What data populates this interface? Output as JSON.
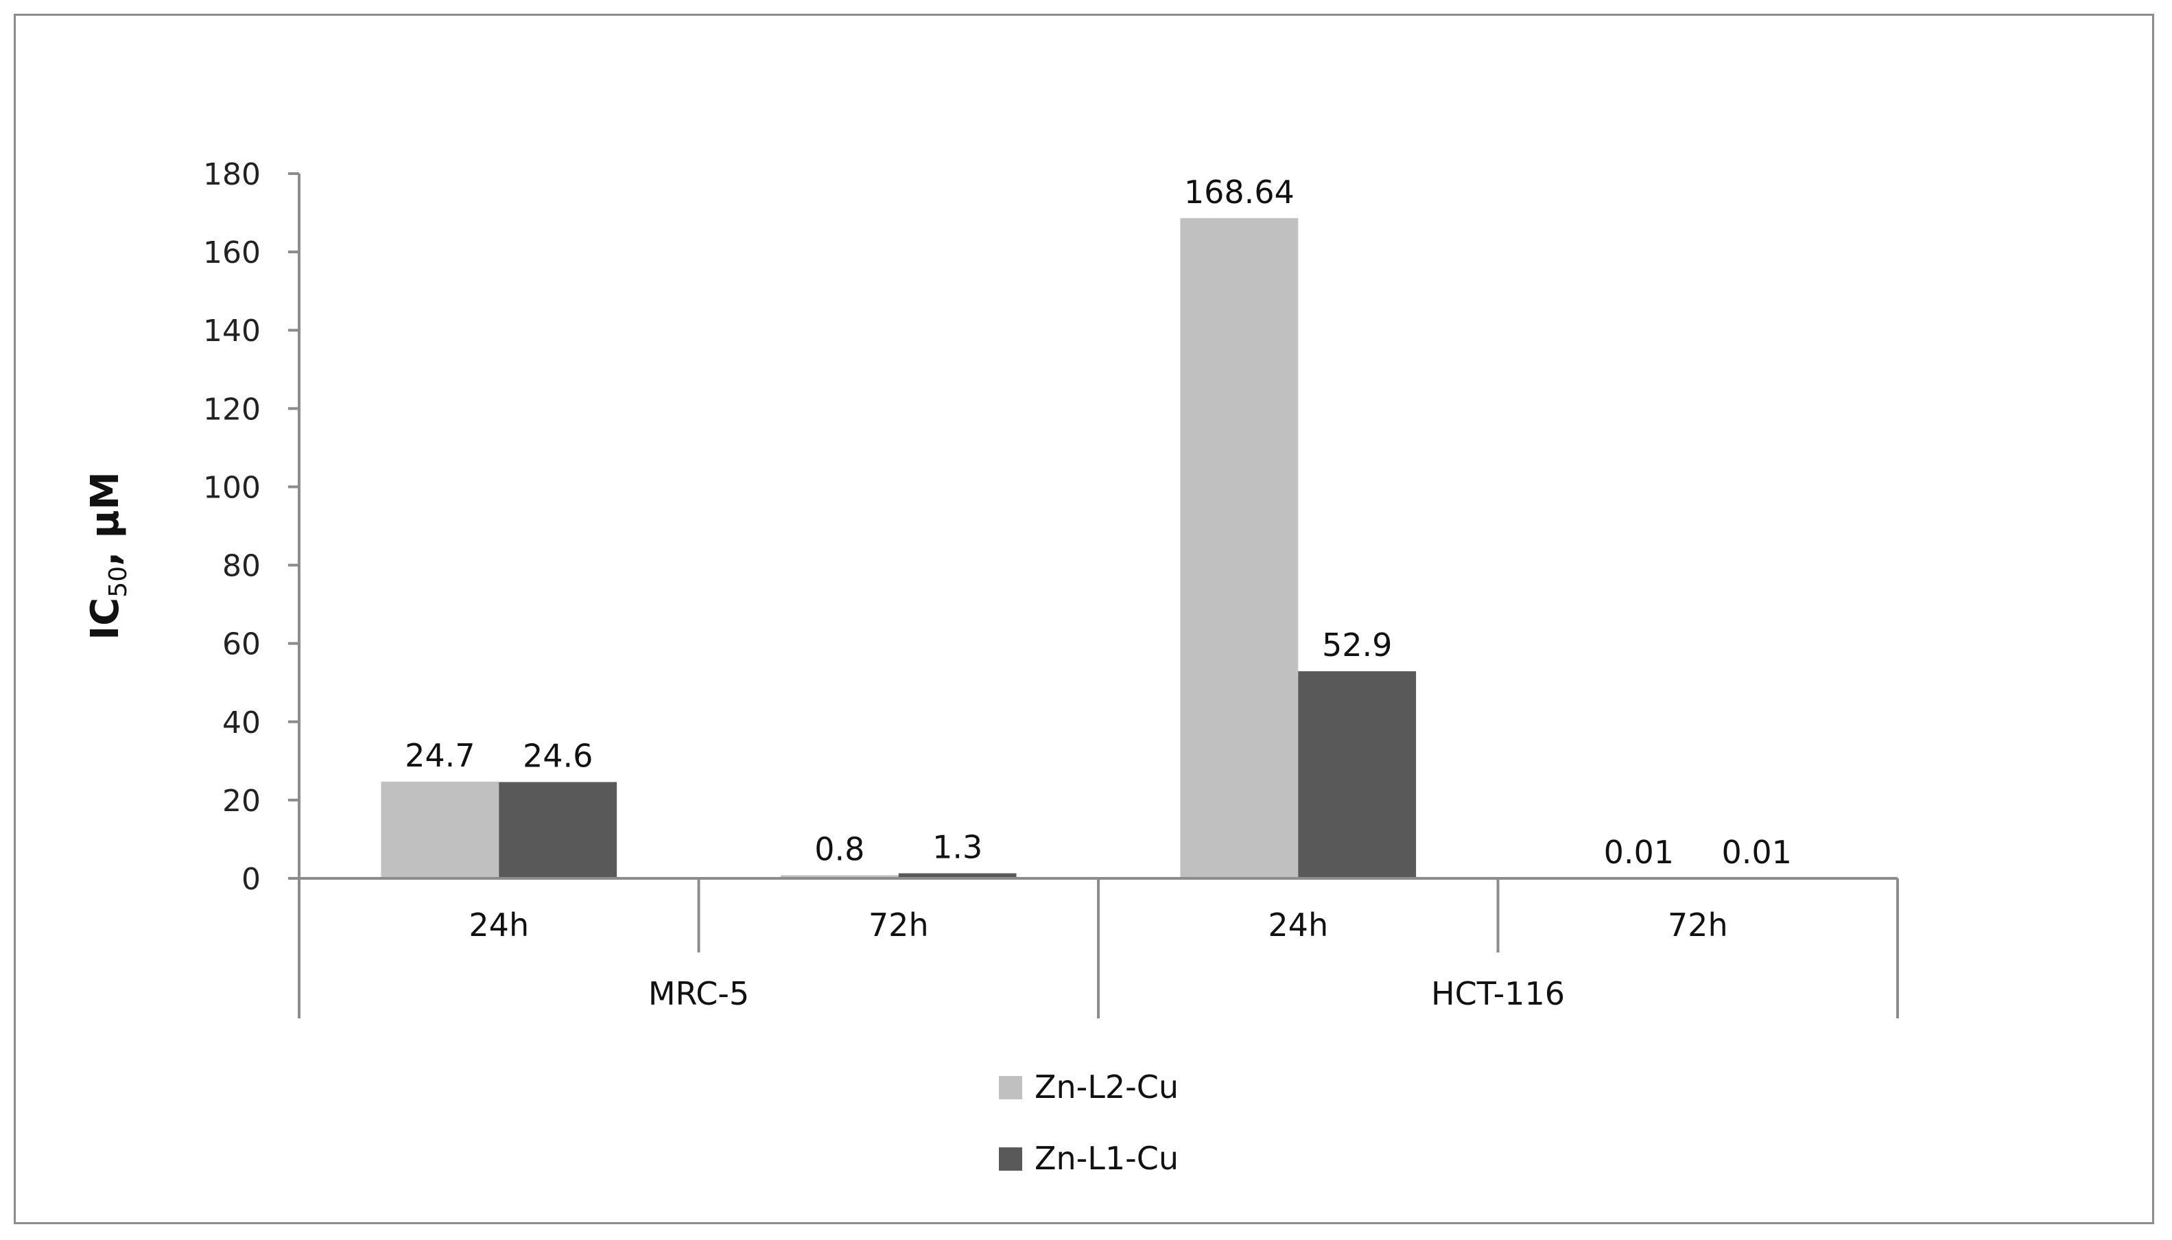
{
  "chart_data": {
    "type": "bar",
    "ylabel": "IC 50, μM",
    "ylabel_main": "IC",
    "ylabel_sub": "50",
    "ylabel_unit": ", μM",
    "ylim": [
      0,
      180
    ],
    "yticks": [
      0,
      20,
      40,
      60,
      80,
      100,
      120,
      140,
      160,
      180
    ],
    "groups": [
      "MRC-5",
      "HCT-116"
    ],
    "categories": [
      "24h",
      "72h",
      "24h",
      "72h"
    ],
    "category_group": [
      0,
      0,
      1,
      1
    ],
    "series": [
      {
        "name": "Zn-L2-Cu",
        "color": "#c0c0c0",
        "values": [
          24.7,
          0.8,
          168.64,
          0.01
        ],
        "labels": [
          "24.7",
          "0.8",
          "168.64",
          "0.01"
        ]
      },
      {
        "name": "Zn-L1-Cu",
        "color": "#595959",
        "values": [
          24.6,
          1.3,
          52.9,
          0.01
        ],
        "labels": [
          "24.6",
          "1.3",
          "52.9",
          "0.01"
        ]
      }
    ],
    "grid": false,
    "legend_position": "bottom"
  }
}
